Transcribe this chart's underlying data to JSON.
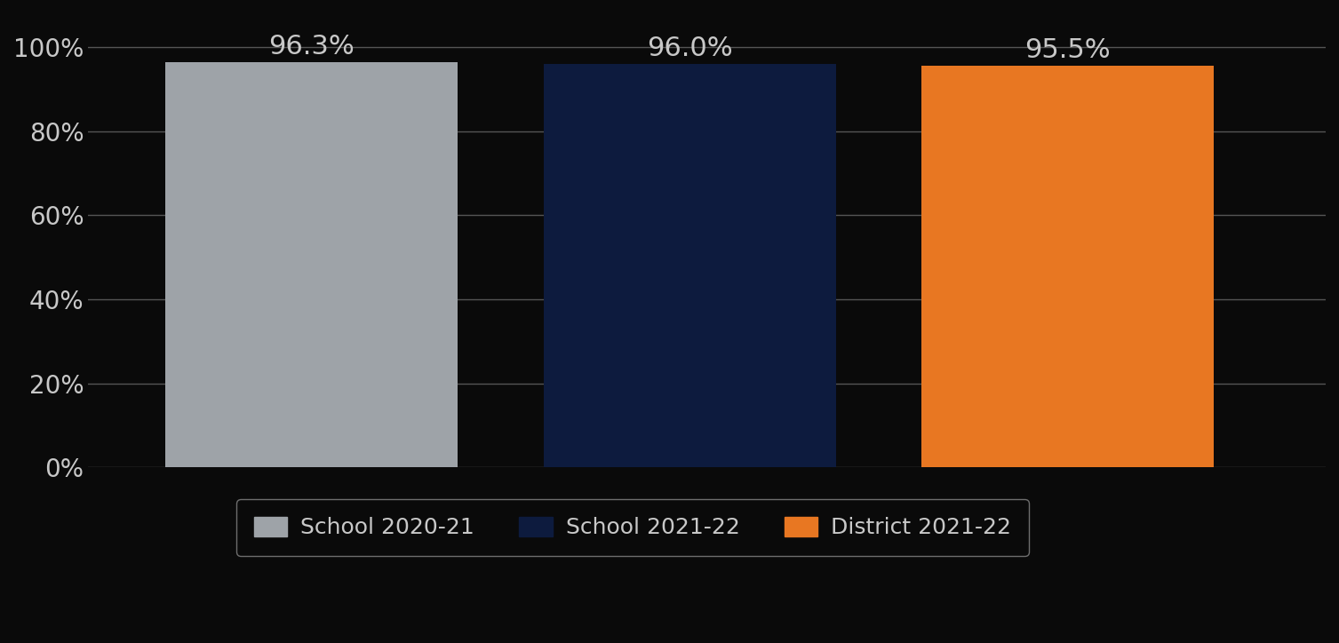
{
  "categories": [
    "School 2020-21",
    "School 2021-22",
    "District 2021-22"
  ],
  "values": [
    0.963,
    0.96,
    0.955
  ],
  "labels": [
    "96.3%",
    "96.0%",
    "95.5%"
  ],
  "bar_colors": [
    "#9EA3A8",
    "#0D1B3E",
    "#E87722"
  ],
  "background_color": "#0a0a0a",
  "text_color": "#c8c8c8",
  "label_color": "#c8c8c8",
  "ylim": [
    0,
    1.08
  ],
  "yticks": [
    0,
    0.2,
    0.4,
    0.6,
    0.8,
    1.0
  ],
  "ytick_labels": [
    "0%",
    "20%",
    "40%",
    "60%",
    "80%",
    "100%"
  ],
  "label_fontsize": 22,
  "tick_fontsize": 20,
  "legend_fontsize": 18,
  "grid_color": "#555555",
  "legend_edge_color": "#888888",
  "legend_bg_color": "#0a0a0a",
  "bar_positions": [
    1.0,
    2.1,
    3.2
  ],
  "bar_width": 0.85,
  "xlim": [
    0.35,
    3.95
  ]
}
